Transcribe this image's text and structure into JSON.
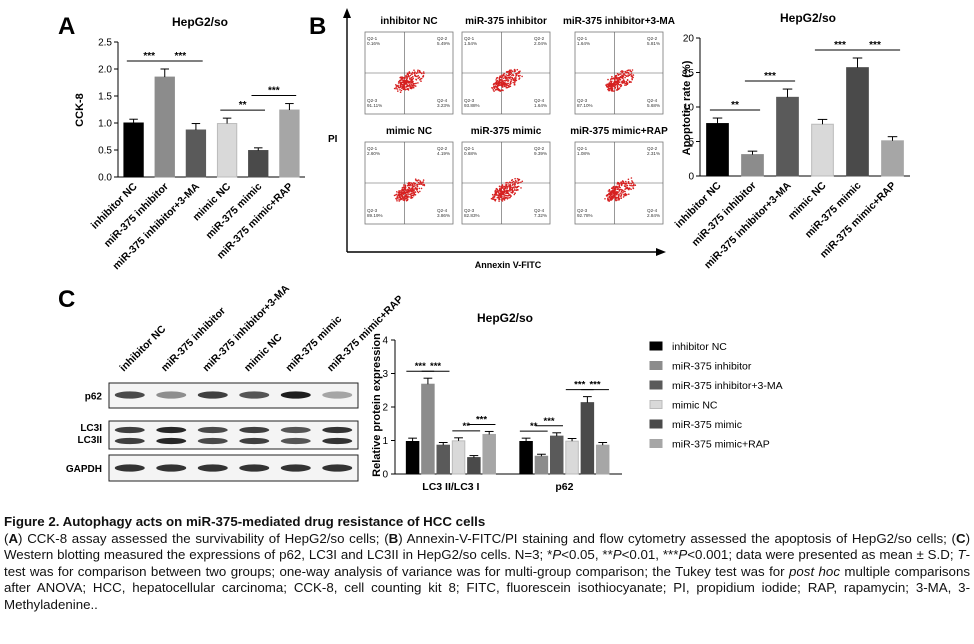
{
  "panels": {
    "A": {
      "letter": "A",
      "chart_data": {
        "type": "bar",
        "title": "HepG2/so",
        "ylabel": "CCK-8",
        "ylim": [
          0,
          2.5
        ],
        "yticks": [
          "0.0",
          "0.5",
          "1.0",
          "1.5",
          "2.0",
          "2.5"
        ],
        "categories": [
          "inhibitor NC",
          "miR-375 inhibitor",
          "miR-375 inhibitor+3-MA",
          "mimic NC",
          "miR-375 mimic",
          "miR-375 mimic+RAP"
        ],
        "values": [
          1.0,
          1.85,
          0.87,
          0.99,
          0.49,
          1.24
        ],
        "errors": [
          0.07,
          0.15,
          0.12,
          0.1,
          0.05,
          0.12
        ],
        "colors": [
          "#000000",
          "#8c8c8c",
          "#5a5a5a",
          "#d9d9d9",
          "#4a4a4a",
          "#a6a6a6"
        ],
        "significance": [
          {
            "from": 0,
            "to": 1,
            "label": "***"
          },
          {
            "from": 1,
            "to": 2,
            "label": "***"
          },
          {
            "from": 3,
            "to": 4,
            "label": "**"
          },
          {
            "from": 4,
            "to": 5,
            "label": "***"
          }
        ]
      }
    },
    "B": {
      "letter": "B",
      "axis_y_label": "PI",
      "axis_x_label": "Annexin V-FITC",
      "flow_plots": [
        {
          "title": "inhibitor NC",
          "q1": "Q2-1\n0.16%",
          "q2": "Q2-2\n5.49%",
          "q3": "Q2-3\n91.11%",
          "q4": "Q2-4\n3.23%"
        },
        {
          "title": "miR-375 inhibitor",
          "q1": "Q2-1\n1.54%",
          "q2": "Q2-2\n2.04%",
          "q3": "Q2-3\n93.88%",
          "q4": "Q2-4\n1.64%"
        },
        {
          "title": "miR-375 inhibitor+3-MA",
          "q1": "Q2-1\n1.64%",
          "q2": "Q2-2\n5.81%",
          "q3": "Q2-3\n87.10%",
          "q4": "Q2-4\n5.68%"
        },
        {
          "title": "mimic NC",
          "q1": "Q2-1\n2.60%",
          "q2": "Q2-2\n4.19%",
          "q3": "Q2-3\n89.19%",
          "q4": "Q2-4\n3.86%"
        },
        {
          "title": "miR-375 mimic",
          "q1": "Q2-1\n0.68%",
          "q2": "Q2-2\n9.39%",
          "q3": "Q2-3\n82.83%",
          "q4": "Q2-4\n7.32%"
        },
        {
          "title": "miR-375 mimic+RAP",
          "q1": "Q2-1\n1.08%",
          "q2": "Q2-2\n2.31%",
          "q3": "Q2-3\n92.78%",
          "q4": "Q2-4\n2.84%"
        }
      ],
      "chart_data": {
        "type": "bar",
        "title": "HepG2/so",
        "ylabel": "Apoptotic rate (%)",
        "ylim": [
          0,
          20
        ],
        "yticks": [
          "0",
          "5",
          "10",
          "15",
          "20"
        ],
        "categories": [
          "inhibitor NC",
          "miR-375 inhibitor",
          "miR-375 inhibitor+3-MA",
          "mimic NC",
          "miR-375 mimic",
          "miR-375 mimic+RAP"
        ],
        "values": [
          7.6,
          3.1,
          11.4,
          7.5,
          15.7,
          5.1
        ],
        "errors": [
          0.8,
          0.5,
          1.2,
          0.7,
          1.4,
          0.6
        ],
        "colors": [
          "#000000",
          "#8c8c8c",
          "#5a5a5a",
          "#d9d9d9",
          "#4a4a4a",
          "#a6a6a6"
        ],
        "significance": [
          {
            "from": 0,
            "to": 1,
            "label": "**"
          },
          {
            "from": 1,
            "to": 2,
            "label": "***"
          },
          {
            "from": 3,
            "to": 4,
            "label": "***"
          },
          {
            "from": 4,
            "to": 5,
            "label": "***"
          }
        ]
      }
    },
    "C": {
      "letter": "C",
      "lanes": [
        "inhibitor NC",
        "miR-375 inhibitor",
        "miR-375 inhibitor+3-MA",
        "mimic NC",
        "miR-375 mimic",
        "miR-375 mimic+RAP"
      ],
      "blots": [
        {
          "labels": [
            "p62"
          ],
          "intensity": [
            0.75,
            0.45,
            0.8,
            0.7,
            0.95,
            0.35
          ]
        },
        {
          "labels": [
            "LC3I",
            "LC3II"
          ],
          "intensity": [
            0.8,
            0.9,
            0.75,
            0.8,
            0.7,
            0.85
          ]
        },
        {
          "labels": [
            "GAPDH"
          ],
          "intensity": [
            0.85,
            0.85,
            0.85,
            0.85,
            0.85,
            0.85
          ]
        }
      ],
      "chart_data": {
        "type": "bar",
        "title": "HepG2/so",
        "ylabel": "Relative protein expression",
        "ylim": [
          0,
          4
        ],
        "yticks": [
          "0",
          "1",
          "2",
          "3",
          "4"
        ],
        "categories": [
          "LC3 II/LC3 I",
          "p62"
        ],
        "series": [
          {
            "name": "inhibitor NC",
            "values": [
              0.97,
              0.97
            ],
            "errors": [
              0.1,
              0.1
            ],
            "color": "#000000"
          },
          {
            "name": "miR-375 inhibitor",
            "values": [
              2.68,
              0.53
            ],
            "errors": [
              0.18,
              0.06
            ],
            "color": "#8c8c8c"
          },
          {
            "name": "miR-375 inhibitor+3-MA",
            "values": [
              0.86,
              1.13
            ],
            "errors": [
              0.08,
              0.1
            ],
            "color": "#5a5a5a"
          },
          {
            "name": "mimic NC",
            "values": [
              0.99,
              0.98
            ],
            "errors": [
              0.09,
              0.08
            ],
            "color": "#d9d9d9"
          },
          {
            "name": "miR-375 mimic",
            "values": [
              0.49,
              2.13
            ],
            "errors": [
              0.06,
              0.18
            ],
            "color": "#4a4a4a"
          },
          {
            "name": "miR-375 mimic+RAP",
            "values": [
              1.18,
              0.86
            ],
            "errors": [
              0.09,
              0.08
            ],
            "color": "#a6a6a6"
          }
        ],
        "significance": [
          {
            "group": 0,
            "from": 0,
            "to": 1,
            "label": "***"
          },
          {
            "group": 0,
            "from": 1,
            "to": 2,
            "label": "***"
          },
          {
            "group": 0,
            "from": 3,
            "to": 4,
            "label": "**"
          },
          {
            "group": 0,
            "from": 4,
            "to": 5,
            "label": "***"
          },
          {
            "group": 1,
            "from": 0,
            "to": 1,
            "label": "**"
          },
          {
            "group": 1,
            "from": 1,
            "to": 2,
            "label": "***"
          },
          {
            "group": 1,
            "from": 3,
            "to": 4,
            "label": "***"
          },
          {
            "group": 1,
            "from": 4,
            "to": 5,
            "label": "***"
          }
        ],
        "legend": "right"
      }
    }
  },
  "caption": {
    "title": "Figure 2. Autophagy acts on miR-375-mediated drug resistance of HCC cells",
    "segments": [
      {
        "t": "("
      },
      {
        "t": "A",
        "b": true
      },
      {
        "t": ") CCK-8 assay assessed the survivability of HepG2/so cells; ("
      },
      {
        "t": "B",
        "b": true
      },
      {
        "t": ") Annexin-V-FITC/PI staining and flow cytometry assessed the apoptosis of HepG2/so cells; ("
      },
      {
        "t": "C",
        "b": true
      },
      {
        "t": ") Western blotting measured the expressions of p62, LC3I and LC3II in HepG2/so cells. N=3; *"
      },
      {
        "t": "P",
        "i": true
      },
      {
        "t": "<0.05, **"
      },
      {
        "t": "P",
        "i": true
      },
      {
        "t": "<0.01, ***"
      },
      {
        "t": "P",
        "i": true
      },
      {
        "t": "<0.001; data were presented as mean ± S.D; "
      },
      {
        "t": "T",
        "i": true
      },
      {
        "t": "-test was for comparison between two groups; one-way analysis of variance was for multi-group comparison; the Tukey test was for "
      },
      {
        "t": "post hoc",
        "i": true
      },
      {
        "t": " multiple comparisons after ANOVA; HCC, hepatocellular carcinoma; CCK-8, cell counting kit 8; FITC, fluorescein isothiocyanate; PI, propidium iodide; RAP, rapamycin; 3-MA, 3-Methyladenine.."
      }
    ]
  }
}
